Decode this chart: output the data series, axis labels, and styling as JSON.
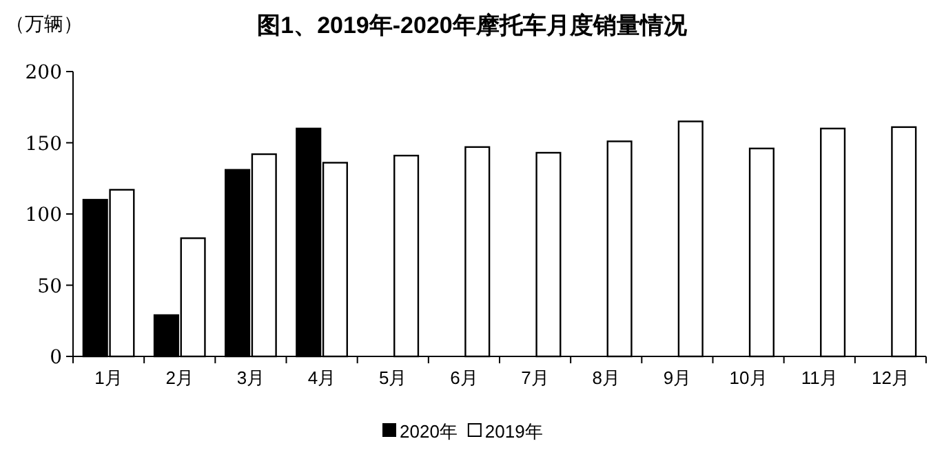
{
  "chart_data": {
    "type": "bar",
    "title": "图1、2019年-2020年摩托车月度销量情况",
    "ylabel": "（万辆）",
    "categories": [
      "1月",
      "2月",
      "3月",
      "4月",
      "5月",
      "6月",
      "7月",
      "8月",
      "9月",
      "10月",
      "11月",
      "12月"
    ],
    "series": [
      {
        "name": "2020年",
        "color": "#000000",
        "values": [
          110,
          29,
          131,
          160,
          null,
          null,
          null,
          null,
          null,
          null,
          null,
          null
        ]
      },
      {
        "name": "2019年",
        "color": "#ffffff",
        "values": [
          117,
          83,
          142,
          136,
          141,
          147,
          143,
          151,
          165,
          146,
          160,
          161
        ]
      }
    ],
    "ylim": [
      0,
      200
    ],
    "yticks": [
      0,
      50,
      100,
      150,
      200
    ],
    "grid": false,
    "legend": "bottom"
  }
}
